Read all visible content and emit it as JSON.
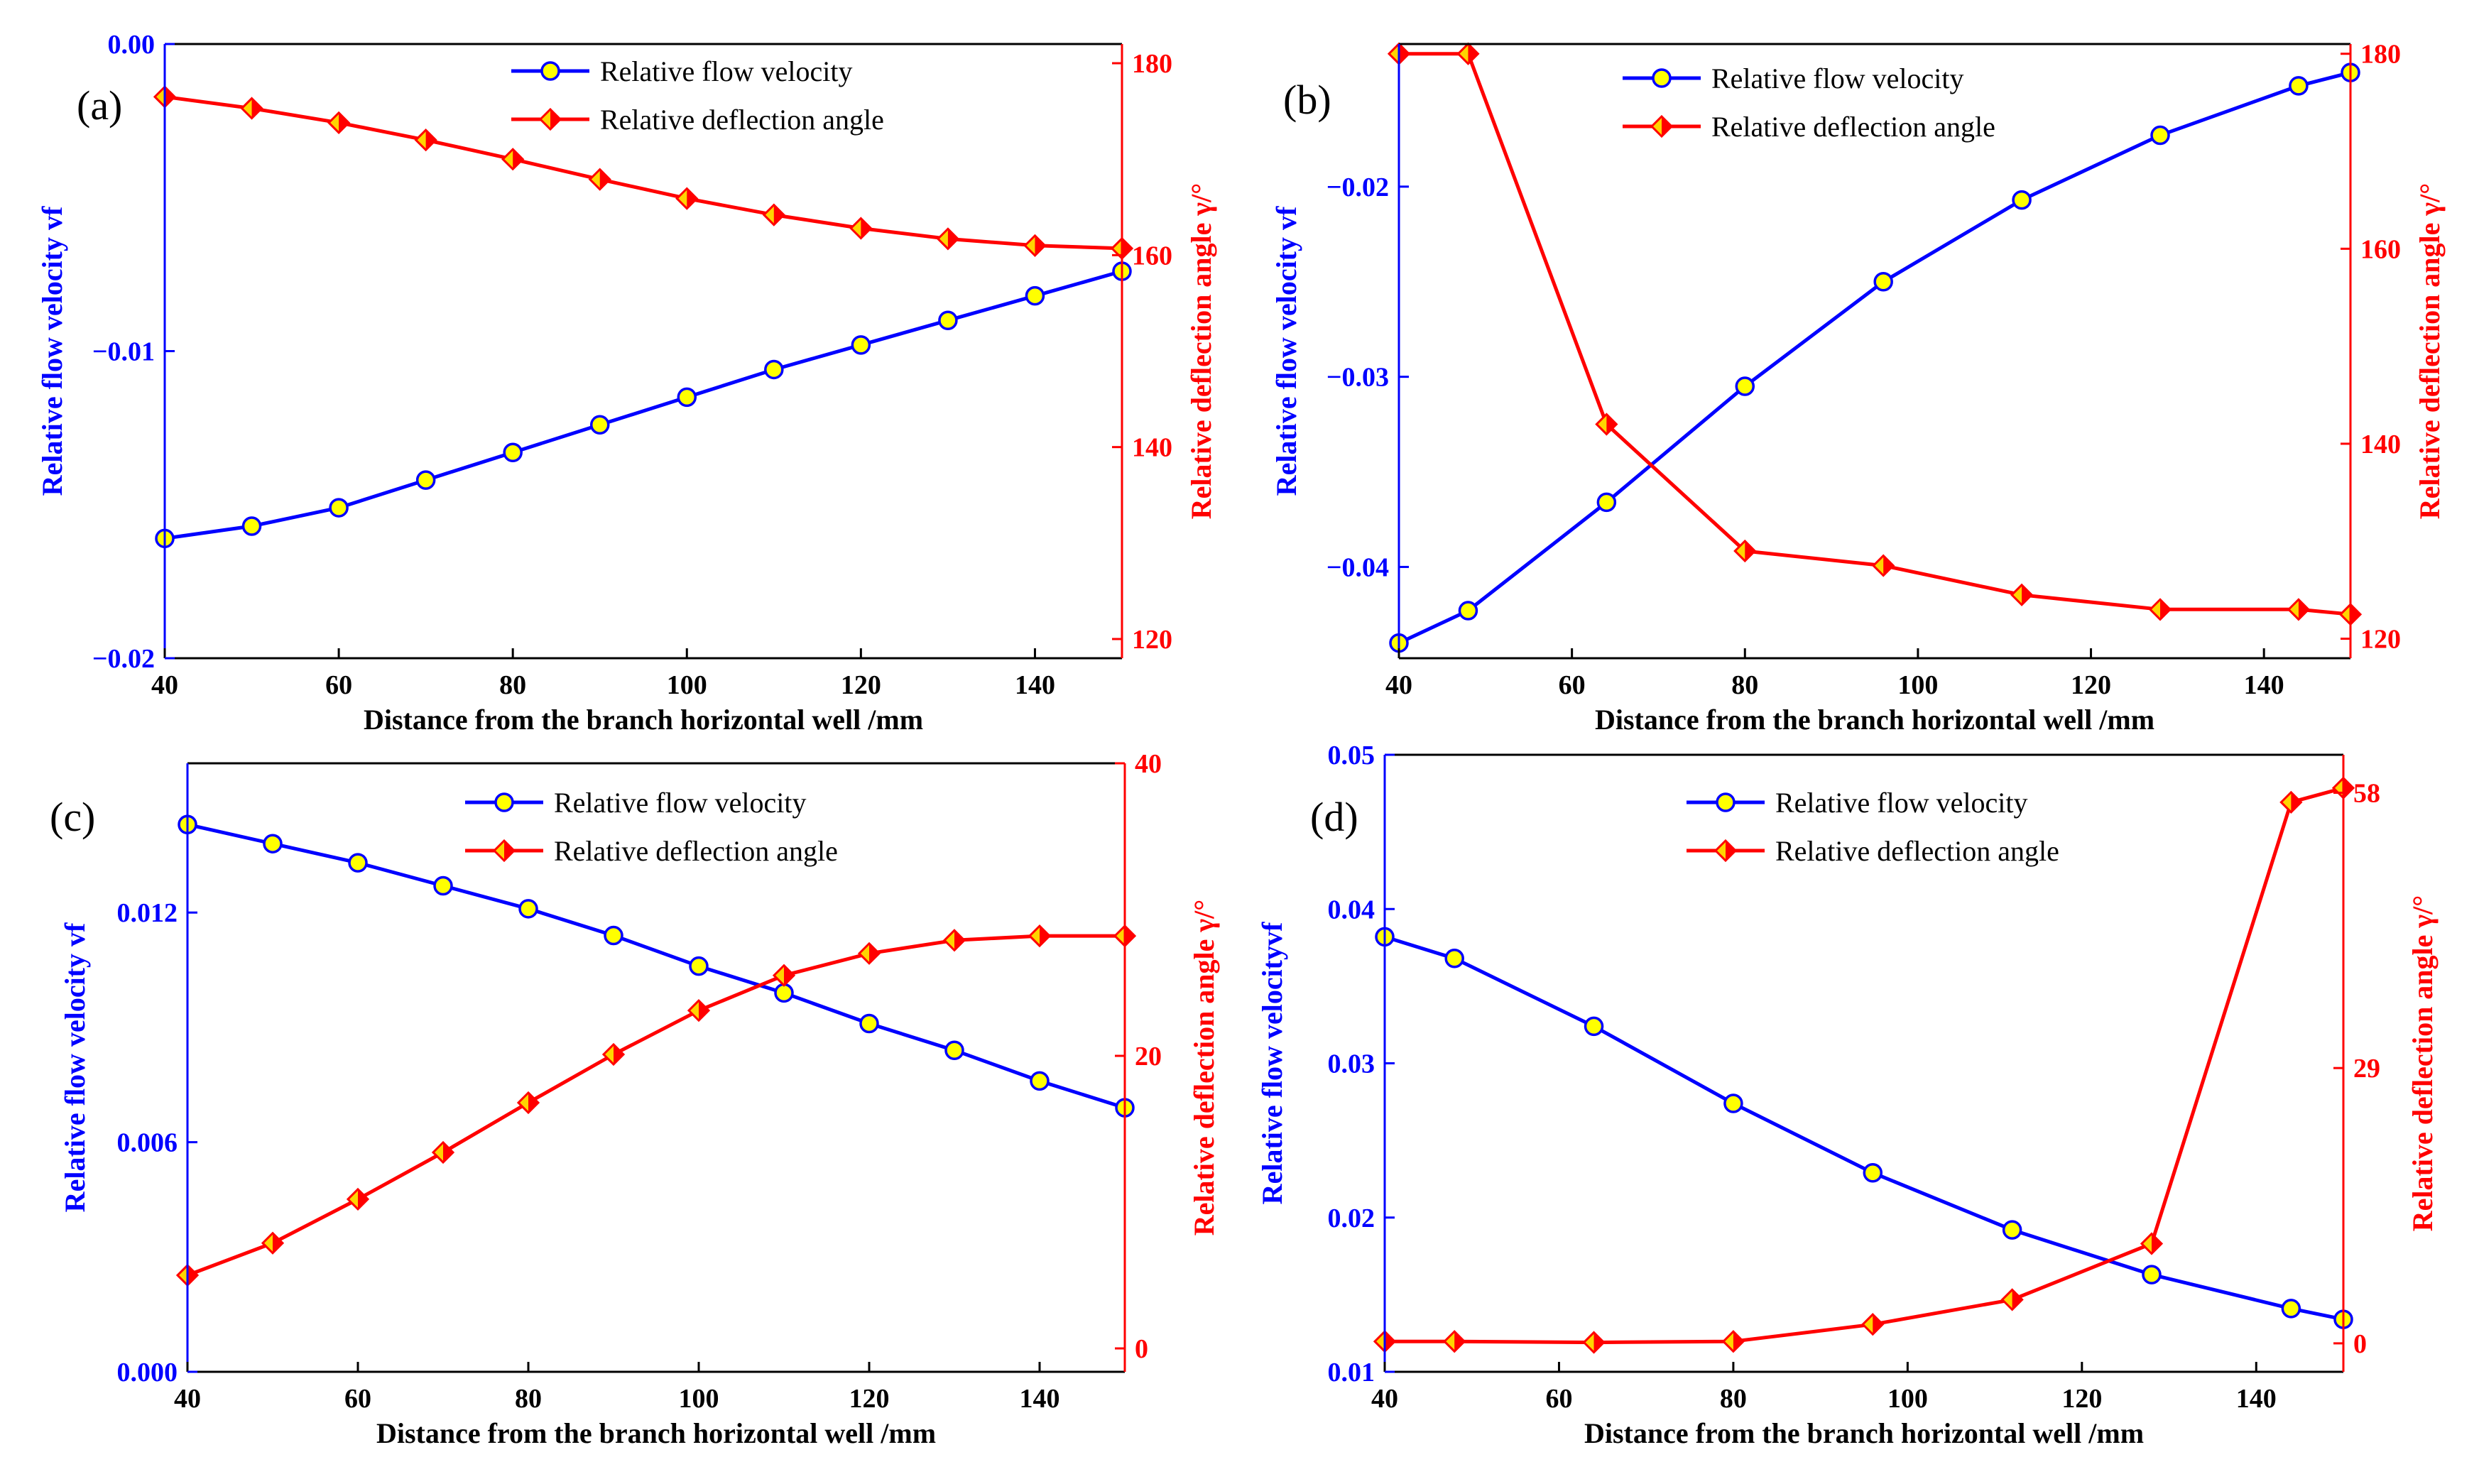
{
  "chart_data": [
    {
      "id": "a",
      "type": "line",
      "panel_label": "(a)",
      "xlabel": "Distance from the branch horizontal well /mm",
      "ylabel_left": "Relative flow velocity vf",
      "ylabel_right": "Relative deflection angle γ/°",
      "xlim": [
        40,
        150
      ],
      "xticks": [
        {
          "v": 40,
          "label": "40"
        },
        {
          "v": 60,
          "label": "60"
        },
        {
          "v": 80,
          "label": "80"
        },
        {
          "v": 100,
          "label": "100"
        },
        {
          "v": 120,
          "label": "120"
        },
        {
          "v": 140,
          "label": "140"
        }
      ],
      "ylim_left": [
        -0.02,
        0.0
      ],
      "yticks_left": [
        {
          "v": -0.02,
          "label": "−0.02"
        },
        {
          "v": -0.01,
          "label": "−0.01"
        },
        {
          "v": 0.0,
          "label": "0.00"
        }
      ],
      "ylim_right": [
        118,
        182
      ],
      "yticks_right": [
        {
          "v": 120,
          "label": "120"
        },
        {
          "v": 140,
          "label": "140"
        },
        {
          "v": 160,
          "label": "160"
        },
        {
          "v": 180,
          "label": "180"
        }
      ],
      "series": [
        {
          "name": "Relative flow velocity",
          "axis": "left",
          "color": "#0000ff",
          "x": [
            40,
            50,
            60,
            70,
            80,
            90,
            100,
            110,
            120,
            130,
            140,
            150
          ],
          "values": [
            -0.0161,
            -0.0157,
            -0.0151,
            -0.0142,
            -0.0133,
            -0.0124,
            -0.0115,
            -0.0106,
            -0.0098,
            -0.009,
            -0.0082,
            -0.0074
          ]
        },
        {
          "name": "Relative deflection angle",
          "axis": "right",
          "color": "#ff0000",
          "x": [
            40,
            50,
            60,
            70,
            80,
            90,
            100,
            110,
            120,
            130,
            140,
            150
          ],
          "values": [
            176.5,
            175.3,
            173.8,
            172.0,
            170.0,
            167.9,
            165.9,
            164.2,
            162.8,
            161.7,
            161.0,
            160.7
          ]
        }
      ],
      "legend": [
        "Relative flow velocity",
        "Relative deflection angle"
      ]
    },
    {
      "id": "b",
      "type": "line",
      "panel_label": "(b)",
      "xlabel": "Distance from the branch horizontal well /mm",
      "ylabel_left": "Relative flow velocity vf",
      "ylabel_right": "Relative deflection angle γ/°",
      "xlim": [
        40,
        150
      ],
      "xticks": [
        {
          "v": 40,
          "label": "40"
        },
        {
          "v": 60,
          "label": "60"
        },
        {
          "v": 80,
          "label": "80"
        },
        {
          "v": 100,
          "label": "100"
        },
        {
          "v": 120,
          "label": "120"
        },
        {
          "v": 140,
          "label": "140"
        }
      ],
      "ylim_left": [
        -0.0448,
        -0.0125
      ],
      "yticks_left": [
        {
          "v": -0.04,
          "label": "−0.04"
        },
        {
          "v": -0.03,
          "label": "−0.03"
        },
        {
          "v": -0.02,
          "label": "−0.02"
        }
      ],
      "ylim_right": [
        118,
        181
      ],
      "yticks_right": [
        {
          "v": 120,
          "label": "120"
        },
        {
          "v": 140,
          "label": "140"
        },
        {
          "v": 160,
          "label": "160"
        },
        {
          "v": 180,
          "label": "180"
        }
      ],
      "series": [
        {
          "name": "Relative flow velocity",
          "axis": "left",
          "color": "#0000ff",
          "x": [
            40,
            48,
            64,
            80,
            96,
            112,
            128,
            144,
            150
          ],
          "values": [
            -0.044,
            -0.0423,
            -0.0366,
            -0.0305,
            -0.025,
            -0.0207,
            -0.0173,
            -0.0147,
            -0.014
          ]
        },
        {
          "name": "Relative deflection angle",
          "axis": "right",
          "color": "#ff0000",
          "x": [
            40,
            48,
            64,
            80,
            96,
            112,
            128,
            144,
            150
          ],
          "values": [
            180,
            180,
            142,
            129,
            127.5,
            124.5,
            123,
            123,
            122.5
          ]
        }
      ],
      "legend": [
        "Relative flow velocity",
        "Relative deflection angle"
      ]
    },
    {
      "id": "c",
      "type": "line",
      "panel_label": "(c)",
      "xlabel": "Distance from the branch horizontal well /mm",
      "ylabel_left": "Relative flow velocity vf",
      "ylabel_right": "Relative deflection angle γ/°",
      "xlim": [
        40,
        150
      ],
      "xticks": [
        {
          "v": 40,
          "label": "40"
        },
        {
          "v": 60,
          "label": "60"
        },
        {
          "v": 80,
          "label": "80"
        },
        {
          "v": 100,
          "label": "100"
        },
        {
          "v": 120,
          "label": "120"
        },
        {
          "v": 140,
          "label": "140"
        }
      ],
      "ylim_left": [
        0.0,
        0.0159
      ],
      "yticks_left": [
        {
          "v": 0.0,
          "label": "0.000"
        },
        {
          "v": 0.006,
          "label": "0.006"
        },
        {
          "v": 0.012,
          "label": "0.012"
        }
      ],
      "ylim_right": [
        -1.6,
        40
      ],
      "yticks_right": [
        {
          "v": 0,
          "label": "0"
        },
        {
          "v": 20,
          "label": "20"
        },
        {
          "v": 40,
          "label": "40"
        }
      ],
      "series": [
        {
          "name": "Relative flow velocity",
          "axis": "left",
          "color": "#0000ff",
          "x": [
            40,
            50,
            60,
            70,
            80,
            90,
            100,
            110,
            120,
            130,
            140,
            150
          ],
          "values": [
            0.0143,
            0.0138,
            0.0133,
            0.0127,
            0.0121,
            0.0114,
            0.0106,
            0.0099,
            0.0091,
            0.0084,
            0.0076,
            0.0069
          ]
        },
        {
          "name": "Relative deflection angle",
          "axis": "right",
          "color": "#ff0000",
          "x": [
            40,
            50,
            60,
            70,
            80,
            90,
            100,
            110,
            120,
            130,
            140,
            150
          ],
          "values": [
            5.0,
            7.2,
            10.2,
            13.4,
            16.8,
            20.1,
            23.1,
            25.5,
            27.0,
            27.9,
            28.2,
            28.2
          ]
        }
      ],
      "legend": [
        "Relative flow velocity",
        "Relative deflection angle"
      ]
    },
    {
      "id": "d",
      "type": "line",
      "panel_label": "(d)",
      "xlabel": "Distance from the branch horizontal well /mm",
      "ylabel_left": "Relative flow velocityvf",
      "ylabel_right": "Relative deflection angle γ/°",
      "xlim": [
        40,
        150
      ],
      "xticks": [
        {
          "v": 40,
          "label": "40"
        },
        {
          "v": 60,
          "label": "60"
        },
        {
          "v": 80,
          "label": "80"
        },
        {
          "v": 100,
          "label": "100"
        },
        {
          "v": 120,
          "label": "120"
        },
        {
          "v": 140,
          "label": "140"
        }
      ],
      "ylim_left": [
        0.01,
        0.05
      ],
      "yticks_left": [
        {
          "v": 0.01,
          "label": "0.01"
        },
        {
          "v": 0.02,
          "label": "0.02"
        },
        {
          "v": 0.03,
          "label": "0.03"
        },
        {
          "v": 0.04,
          "label": "0.04"
        },
        {
          "v": 0.05,
          "label": "0.05"
        }
      ],
      "ylim_right": [
        -3,
        62
      ],
      "yticks_right": [
        {
          "v": 0,
          "label": "0"
        },
        {
          "v": 29,
          "label": "29"
        },
        {
          "v": 58,
          "label": "58"
        }
      ],
      "series": [
        {
          "name": "Relative flow velocity",
          "axis": "left",
          "color": "#0000ff",
          "x": [
            40,
            48,
            64,
            80,
            96,
            112,
            128,
            144,
            150
          ],
          "values": [
            0.0382,
            0.0368,
            0.0324,
            0.0274,
            0.0229,
            0.0192,
            0.0163,
            0.0141,
            0.0134
          ]
        },
        {
          "name": "Relative deflection angle",
          "axis": "right",
          "color": "#ff0000",
          "x": [
            40,
            48,
            64,
            80,
            96,
            112,
            128,
            144,
            150
          ],
          "values": [
            0.2,
            0.2,
            0.1,
            0.2,
            2.0,
            4.6,
            10.5,
            57.0,
            58.5
          ]
        }
      ],
      "legend": [
        "Relative flow velocity",
        "Relative deflection angle"
      ]
    }
  ]
}
